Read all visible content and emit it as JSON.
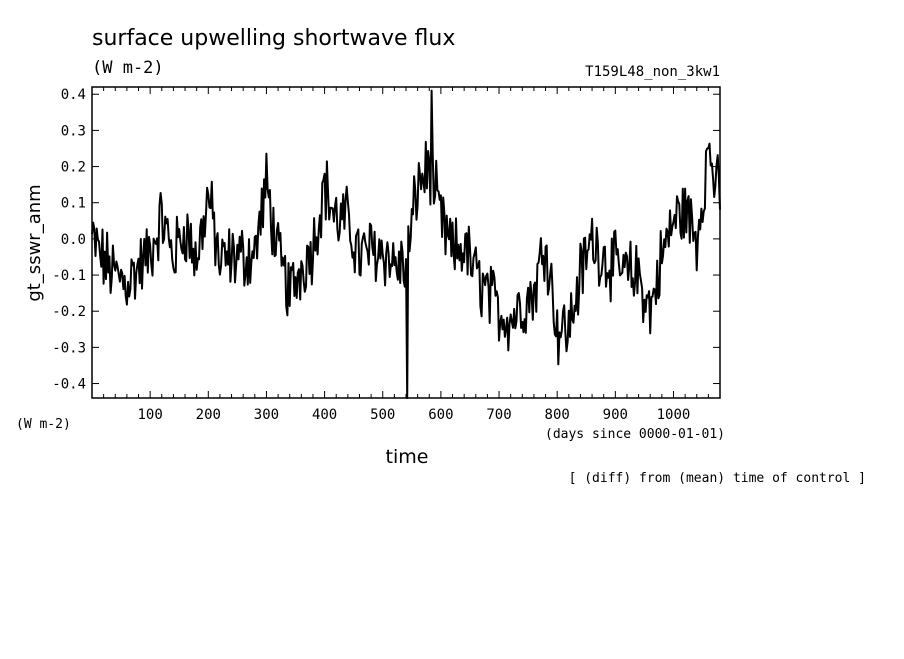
{
  "chart_data": {
    "type": "line",
    "title": "surface upwelling shortwave flux",
    "units": "(W m-2)",
    "run_name": "T159L48_non_3kw1",
    "ylabel": "gt_sswr_anm",
    "yunits": "(W m-2)",
    "xlabel": "time",
    "xunits": "(days since 0000-01-01)",
    "note": "[ (diff) from (mean) time of control ]",
    "xlim": [
      0,
      1080
    ],
    "ylim": [
      -0.44,
      0.42
    ],
    "x_ticks": [
      100,
      200,
      300,
      400,
      500,
      600,
      700,
      800,
      900,
      1000
    ],
    "y_ticks": [
      0.4,
      0.3,
      0.2,
      0.1,
      0.0,
      -0.1,
      -0.2,
      -0.3,
      -0.4
    ],
    "y_tick_labels": [
      "0.4",
      "0.3",
      "0.2",
      "0.1",
      "0.0",
      "-0.1",
      "-0.2",
      "-0.3",
      "-0.4"
    ],
    "x_tick_labels": [
      "100",
      "200",
      "300",
      "400",
      "500",
      "600",
      "700",
      "800",
      "900",
      "1000"
    ],
    "grid": false,
    "series": [
      {
        "x": [
          0,
          20,
          40,
          60,
          80,
          100,
          120,
          140,
          160,
          180,
          200,
          220,
          240,
          260,
          280,
          300,
          320,
          340,
          360,
          380,
          400,
          420,
          440,
          460,
          480,
          500,
          520,
          540,
          560,
          580,
          600,
          620,
          640,
          660,
          680,
          700,
          720,
          740,
          760,
          780,
          800,
          820,
          840,
          860,
          880,
          900,
          920,
          940,
          960,
          980,
          1000,
          1020,
          1040,
          1060,
          1080
        ],
        "values": [
          0.0,
          -0.06,
          -0.1,
          -0.12,
          -0.08,
          -0.04,
          0.06,
          -0.05,
          0.03,
          -0.06,
          0.12,
          -0.07,
          -0.05,
          -0.05,
          -0.04,
          0.15,
          -0.05,
          -0.15,
          -0.08,
          -0.02,
          0.15,
          0.05,
          0.05,
          -0.05,
          -0.03,
          -0.03,
          -0.07,
          -0.08,
          0.15,
          0.2,
          0.05,
          -0.04,
          -0.02,
          -0.1,
          -0.15,
          -0.2,
          -0.22,
          -0.18,
          -0.15,
          0.0,
          -0.25,
          -0.25,
          -0.1,
          0.0,
          -0.05,
          -0.08,
          -0.1,
          -0.1,
          -0.2,
          -0.05,
          0.05,
          0.08,
          0.0,
          0.25,
          0.1
        ]
      }
    ]
  }
}
